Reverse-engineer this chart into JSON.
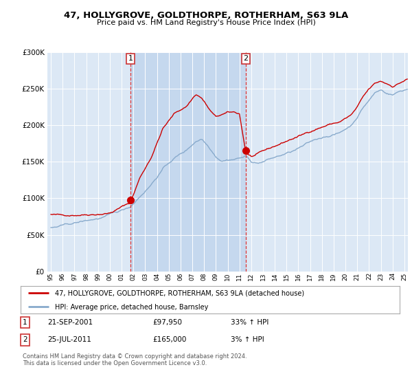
{
  "title": "47, HOLLYGROVE, GOLDTHORPE, ROTHERHAM, S63 9LA",
  "subtitle": "Price paid vs. HM Land Registry's House Price Index (HPI)",
  "ylim": [
    0,
    300000
  ],
  "plot_bg_color": "#dce8f5",
  "shade_color": "#c5d8ee",
  "red_color": "#cc0000",
  "blue_color": "#88aacc",
  "marker1_year": 2001.75,
  "marker1_value": 97950,
  "marker2_year": 2011.55,
  "marker2_value": 165000,
  "legend_text1": "47, HOLLYGROVE, GOLDTHORPE, ROTHERHAM, S63 9LA (detached house)",
  "legend_text2": "HPI: Average price, detached house, Barnsley",
  "table_row1": [
    "1",
    "21-SEP-2001",
    "£97,950",
    "33% ↑ HPI"
  ],
  "table_row2": [
    "2",
    "25-JUL-2011",
    "£165,000",
    "3% ↑ HPI"
  ],
  "footer": "Contains HM Land Registry data © Crown copyright and database right 2024.\nThis data is licensed under the Open Government Licence v3.0.",
  "xstart": 1995.0,
  "xend": 2025.3,
  "tick_years": [
    "95",
    "96",
    "97",
    "98",
    "99",
    "00",
    "01",
    "02",
    "03",
    "04",
    "05",
    "06",
    "07",
    "08",
    "09",
    "10",
    "11",
    "12",
    "13",
    "14",
    "15",
    "16",
    "17",
    "18",
    "19",
    "20",
    "21",
    "22",
    "23",
    "24",
    "25"
  ],
  "tick_year_vals": [
    1995,
    1996,
    1997,
    1998,
    1999,
    2000,
    2001,
    2002,
    2003,
    2004,
    2005,
    2006,
    2007,
    2008,
    2009,
    2010,
    2011,
    2012,
    2013,
    2014,
    2015,
    2016,
    2017,
    2018,
    2019,
    2020,
    2021,
    2022,
    2023,
    2024,
    2025
  ]
}
